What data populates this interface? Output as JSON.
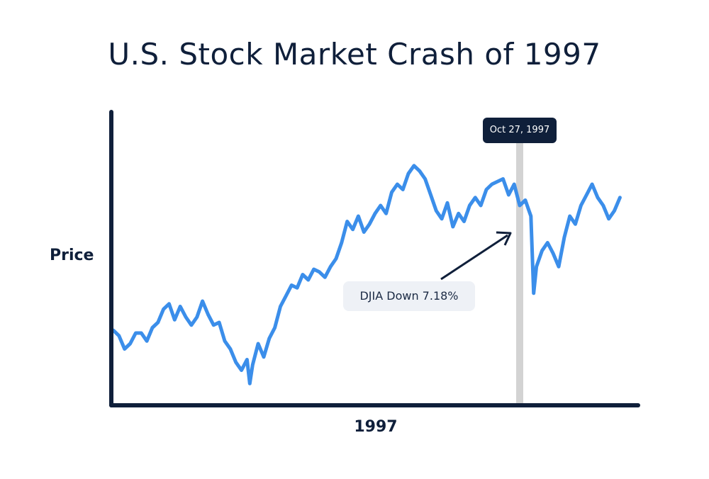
{
  "chart_data": {
    "type": "line",
    "title": "U.S. Stock Market Crash of 1997",
    "xlabel": "1997",
    "ylabel": "Price",
    "x_domain": [
      "1997-01-01",
      "1997-12-31"
    ],
    "y_ticks_shown": false,
    "grid": false,
    "event": {
      "date": "1997-10-27",
      "label": "Oct 27, 1997",
      "annotation": "DJIA Down 7.18%"
    },
    "series": [
      {
        "values": [
          [
            0.0,
            0.29
          ],
          [
            0.01,
            0.27
          ],
          [
            0.02,
            0.22
          ],
          [
            0.03,
            0.24
          ],
          [
            0.04,
            0.28
          ],
          [
            0.05,
            0.28
          ],
          [
            0.06,
            0.25
          ],
          [
            0.07,
            0.3
          ],
          [
            0.08,
            0.32
          ],
          [
            0.09,
            0.37
          ],
          [
            0.1,
            0.39
          ],
          [
            0.11,
            0.33
          ],
          [
            0.12,
            0.38
          ],
          [
            0.13,
            0.34
          ],
          [
            0.14,
            0.31
          ],
          [
            0.15,
            0.34
          ],
          [
            0.16,
            0.4
          ],
          [
            0.17,
            0.35
          ],
          [
            0.18,
            0.31
          ],
          [
            0.19,
            0.32
          ],
          [
            0.2,
            0.25
          ],
          [
            0.21,
            0.22
          ],
          [
            0.22,
            0.17
          ],
          [
            0.23,
            0.14
          ],
          [
            0.24,
            0.18
          ],
          [
            0.245,
            0.09
          ],
          [
            0.25,
            0.16
          ],
          [
            0.26,
            0.24
          ],
          [
            0.27,
            0.19
          ],
          [
            0.28,
            0.26
          ],
          [
            0.29,
            0.3
          ],
          [
            0.3,
            0.38
          ],
          [
            0.31,
            0.42
          ],
          [
            0.32,
            0.46
          ],
          [
            0.33,
            0.45
          ],
          [
            0.34,
            0.5
          ],
          [
            0.35,
            0.48
          ],
          [
            0.36,
            0.52
          ],
          [
            0.37,
            0.51
          ],
          [
            0.38,
            0.49
          ],
          [
            0.39,
            0.53
          ],
          [
            0.4,
            0.56
          ],
          [
            0.41,
            0.62
          ],
          [
            0.42,
            0.7
          ],
          [
            0.43,
            0.67
          ],
          [
            0.44,
            0.72
          ],
          [
            0.45,
            0.66
          ],
          [
            0.46,
            0.69
          ],
          [
            0.47,
            0.73
          ],
          [
            0.48,
            0.76
          ],
          [
            0.49,
            0.73
          ],
          [
            0.5,
            0.81
          ],
          [
            0.51,
            0.84
          ],
          [
            0.52,
            0.82
          ],
          [
            0.53,
            0.88
          ],
          [
            0.54,
            0.91
          ],
          [
            0.55,
            0.89
          ],
          [
            0.56,
            0.86
          ],
          [
            0.57,
            0.8
          ],
          [
            0.58,
            0.74
          ],
          [
            0.59,
            0.71
          ],
          [
            0.6,
            0.77
          ],
          [
            0.61,
            0.68
          ],
          [
            0.62,
            0.73
          ],
          [
            0.63,
            0.7
          ],
          [
            0.64,
            0.76
          ],
          [
            0.65,
            0.79
          ],
          [
            0.66,
            0.76
          ],
          [
            0.67,
            0.82
          ],
          [
            0.68,
            0.84
          ],
          [
            0.69,
            0.85
          ],
          [
            0.7,
            0.86
          ],
          [
            0.71,
            0.8
          ],
          [
            0.72,
            0.84
          ],
          [
            0.73,
            0.76
          ],
          [
            0.74,
            0.78
          ],
          [
            0.75,
            0.72
          ],
          [
            0.755,
            0.43
          ],
          [
            0.76,
            0.53
          ],
          [
            0.77,
            0.59
          ],
          [
            0.78,
            0.62
          ],
          [
            0.79,
            0.58
          ],
          [
            0.8,
            0.53
          ],
          [
            0.81,
            0.64
          ],
          [
            0.82,
            0.72
          ],
          [
            0.83,
            0.69
          ],
          [
            0.84,
            0.76
          ],
          [
            0.85,
            0.8
          ],
          [
            0.86,
            0.84
          ],
          [
            0.87,
            0.79
          ],
          [
            0.88,
            0.76
          ],
          [
            0.89,
            0.71
          ],
          [
            0.9,
            0.74
          ],
          [
            0.91,
            0.79
          ]
        ]
      }
    ],
    "colors": {
      "line": "#3b8eea",
      "axis": "#0f1f3a",
      "event_band": "#d3d3d3",
      "tooltip_bg": "#0f1f3a",
      "annotation_bg": "#eef1f6",
      "arrow": "#0f1f3a"
    }
  }
}
